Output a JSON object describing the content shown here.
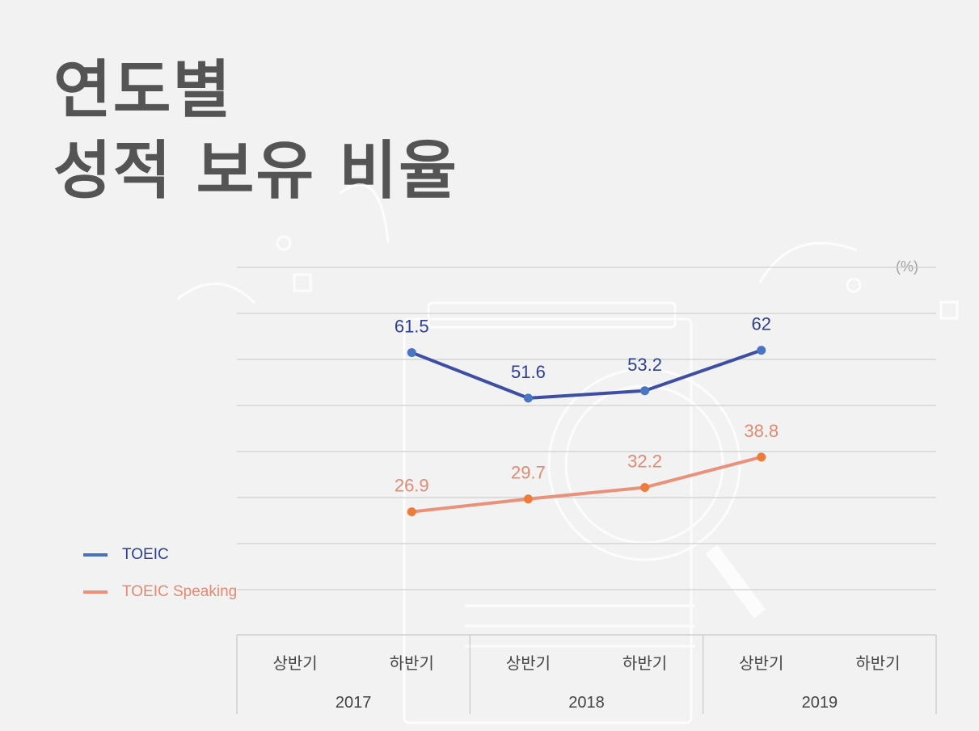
{
  "title_lines": [
    "연도별",
    "성적 보유 비율"
  ],
  "unit": "(%)",
  "colors": {
    "toeic_line": "#3d4ea3",
    "toeic_point": "#4a74c4",
    "toeic_legend": "#4a6fc0",
    "toeic_label": "#2f3f8f",
    "speaking_line": "#e9917a",
    "speaking_point": "#ee7b3a",
    "speaking_label": "#e08a74",
    "grid": "#cfcfcf",
    "text": "#444444"
  },
  "chart_data": {
    "type": "line",
    "title": "연도별 성적 보유 비율",
    "xlabel": "",
    "ylabel": "(%)",
    "ylim": [
      20,
      70
    ],
    "grid": true,
    "legend_position": "left",
    "categories": [
      {
        "half": "상반기",
        "year": "2017"
      },
      {
        "half": "하반기",
        "year": "2017"
      },
      {
        "half": "상반기",
        "year": "2018"
      },
      {
        "half": "하반기",
        "year": "2018"
      },
      {
        "half": "상반기",
        "year": "2019"
      },
      {
        "half": "하반기",
        "year": "2019"
      }
    ],
    "year_groups": [
      "2017",
      "2018",
      "2019"
    ],
    "series": [
      {
        "name": "TOEIC",
        "values": [
          null,
          61.5,
          51.6,
          53.2,
          62,
          null
        ],
        "labels": [
          "",
          "61.5",
          "51.6",
          "53.2",
          "62",
          ""
        ]
      },
      {
        "name": "TOEIC Speaking",
        "values": [
          null,
          26.9,
          29.7,
          32.2,
          38.8,
          null
        ],
        "labels": [
          "",
          "26.9",
          "29.7",
          "32.2",
          "38.8",
          ""
        ]
      }
    ]
  }
}
